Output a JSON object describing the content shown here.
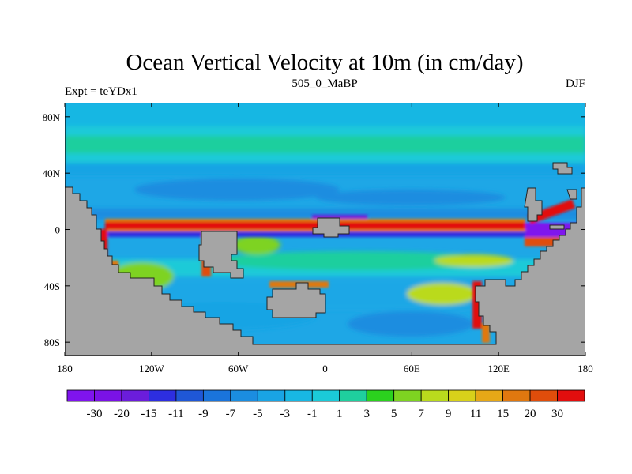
{
  "chart_data": {
    "type": "heatmap",
    "title": "Ocean Vertical Velocity at 10m (in cm/day)",
    "left_string": "Expt = teYDx1",
    "center_string": "505_0_MaBP",
    "right_string": "DJF",
    "x_axis": {
      "range": [
        -180,
        180
      ],
      "ticks": [
        -180,
        -120,
        -60,
        0,
        60,
        120,
        180
      ],
      "tick_labels": [
        "180",
        "120W",
        "60W",
        "0",
        "60E",
        "120E",
        "180"
      ]
    },
    "y_axis": {
      "range": [
        -90,
        90
      ],
      "ticks": [
        80,
        40,
        0,
        -40,
        -80
      ],
      "tick_labels": [
        "80N",
        "40N",
        "0",
        "40S",
        "80S"
      ]
    },
    "colorbar": {
      "levels": [
        "-30",
        "-20",
        "-15",
        "-11",
        "-9",
        "-7",
        "-5",
        "-3",
        "-1",
        "1",
        "3",
        "5",
        "7",
        "9",
        "11",
        "15",
        "20",
        "30"
      ],
      "colors": [
        "#7f14ee",
        "#7a12e6",
        "#6b1ddb",
        "#2d2ee0",
        "#1f57d6",
        "#1a74db",
        "#1b8de0",
        "#19a4e4",
        "#18b7e3",
        "#1bcad8",
        "#1fcf9e",
        "#2bd11e",
        "#7ed321",
        "#bada1d",
        "#d8d11a",
        "#e6a817",
        "#e0780f",
        "#e04d0b",
        "#e20e0e"
      ]
    },
    "land_color": "#a5a5a5",
    "background_ocean": "#1ea7e6",
    "features": [
      {
        "name": "equatorial upwelling band",
        "lon_range": [
          -150,
          160
        ],
        "lat": 0,
        "value": 30
      },
      {
        "name": "north temperate band",
        "lon_range": [
          -180,
          180
        ],
        "lat": 50,
        "value": 3
      },
      {
        "name": "arctic band",
        "lon_range": [
          -180,
          180
        ],
        "lat": 80,
        "value": 1
      }
    ]
  }
}
